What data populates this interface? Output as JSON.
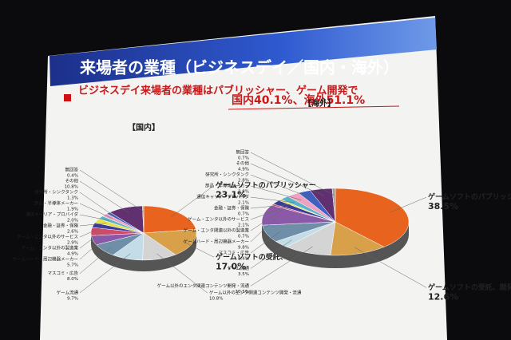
{
  "title": "来場者の業種（ビジネスデイ／国内・海外）",
  "subtitle": [
    "ビジネスデイ来場者の業種はパブリッシャー、ゲーム開発で",
    "国内40.1%、海外51.1%"
  ],
  "chart_data": [
    {
      "type": "pie",
      "title": "【国内】",
      "categories": [
        "ゲームソフトのパブリッシャー",
        "ゲームソフトの受託、開発・開発支援",
        "ゲーム以外のエンタ関連コンテンツ開発・流通",
        "ゲーム流通",
        "マスコミ・広告",
        "ゲームハード・周辺機器メーカー",
        "ゲーム・エンタ以外の製造業",
        "ゲーム・エンタ以外のサービス",
        "金融・証券・保険",
        "通信キャリア・プロバイダ",
        "部品・半導体メーカー",
        "研究所・シンクタンク",
        "その他",
        "無回答"
      ],
      "values": [
        23.1,
        17.0,
        10.8,
        9.7,
        8.0,
        5.7,
        4.9,
        2.9,
        2.6,
        2.0,
        1.9,
        1.3,
        10.8,
        0.4
      ],
      "value_labels": [
        "23.1%",
        "17.0%",
        "10.8%",
        "9.7%",
        "8.0%",
        "5.7%",
        "4.9%",
        "2.9%",
        "2.6%",
        "2.0%",
        "1.9%",
        "1.3%",
        "10.8%",
        "0.4%"
      ],
      "colors": [
        "#e8641e",
        "#d8a048",
        "#d4d4d4",
        "#c4dce8",
        "#6f8fa8",
        "#8a5aa8",
        "#d04a6a",
        "#3b3b9a",
        "#e6e04a",
        "#5ab4c8",
        "#f0a0c0",
        "#4060c0",
        "#603070",
        "#a0a0a0"
      ]
    },
    {
      "type": "pie",
      "title": "【海外】",
      "categories": [
        "ゲームソフトのパブリッシャー",
        "ゲームソフトの受託、開発・開発支援",
        "ゲーム以外のエンタ関連コンテンツ開発・流通",
        "ゲーム流通",
        "マスコミ・広告",
        "ゲームハード・周辺機器メーカー",
        "ゲーム・エンタ関連以外の製造業",
        "ゲーム・エンタ以外のサービス",
        "金融・証券・保険",
        "通信キャリア・プロバイダ",
        "部品・半導体メーカー",
        "研究所・シンクタンク",
        "その他",
        "無回答"
      ],
      "values": [
        38.5,
        12.6,
        10.5,
        3.5,
        8.4,
        9.8,
        0.7,
        2.1,
        0.7,
        2.1,
        2.8,
        2.8,
        4.9,
        0.7
      ],
      "value_labels": [
        "38.5%",
        "12.6%",
        "10.5%",
        "3.5%",
        "8.4%",
        "9.8%",
        "0.7%",
        "2.1%",
        "0.7%",
        "2.1%",
        "2.8%",
        "2.8%",
        "4.9%",
        "0.7%"
      ],
      "colors": [
        "#e8641e",
        "#d8a048",
        "#d4d4d4",
        "#c4dce8",
        "#6f8fa8",
        "#8a5aa8",
        "#d04a6a",
        "#3b3b9a",
        "#e6e04a",
        "#5ab4c8",
        "#f0a0c0",
        "#4060c0",
        "#603070",
        "#a0a0a0"
      ]
    }
  ]
}
